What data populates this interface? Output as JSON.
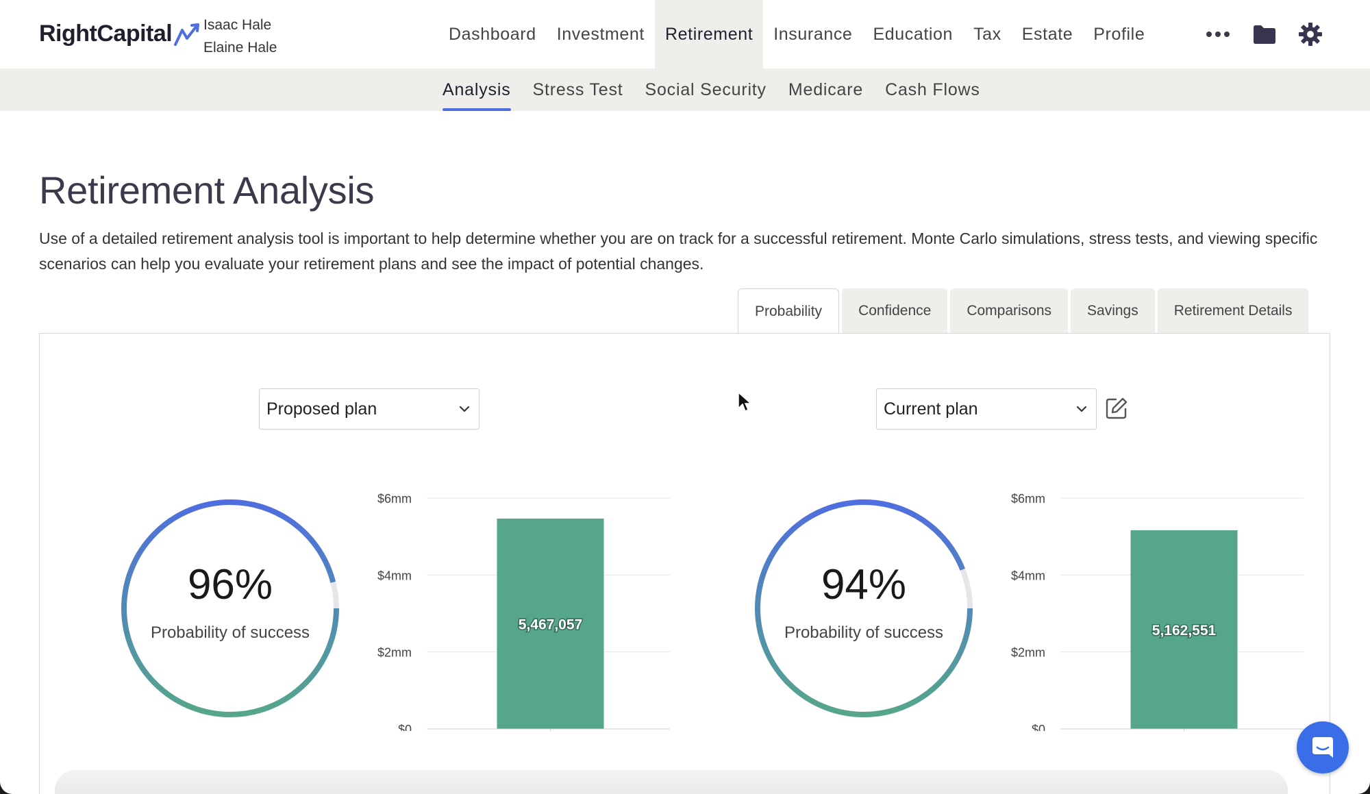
{
  "app": {
    "brand": "RightCapital",
    "clients": [
      "Isaac Hale",
      "Elaine Hale"
    ]
  },
  "main_nav": [
    {
      "label": "Dashboard",
      "active": false
    },
    {
      "label": "Investment",
      "active": false
    },
    {
      "label": "Retirement",
      "active": true
    },
    {
      "label": "Insurance",
      "active": false
    },
    {
      "label": "Education",
      "active": false
    },
    {
      "label": "Tax",
      "active": false
    },
    {
      "label": "Estate",
      "active": false
    },
    {
      "label": "Profile",
      "active": false
    }
  ],
  "nav_icons": [
    "more-icon",
    "folder-icon",
    "gear-icon"
  ],
  "sub_nav": [
    {
      "label": "Analysis",
      "active": true
    },
    {
      "label": "Stress Test",
      "active": false
    },
    {
      "label": "Social Security",
      "active": false
    },
    {
      "label": "Medicare",
      "active": false
    },
    {
      "label": "Cash Flows",
      "active": false
    }
  ],
  "page": {
    "title": "Retirement Analysis",
    "description": "Use of a detailed retirement analysis tool is important to help determine whether you are on track for a successful retirement. Monte Carlo simulations, stress tests, and viewing specific scenarios can help you evaluate your retirement plans and see the impact of potential changes."
  },
  "tabs": [
    {
      "label": "Probability",
      "active": true
    },
    {
      "label": "Confidence",
      "active": false
    },
    {
      "label": "Comparisons",
      "active": false
    },
    {
      "label": "Savings",
      "active": false
    },
    {
      "label": "Retirement Details",
      "active": false
    }
  ],
  "colors": {
    "accent": "#4f6ee0",
    "bar": "#55a68a",
    "gauge_start": "#4f6ee0",
    "gauge_end": "#55a68a",
    "gauge_track": "#e6e6ea"
  },
  "plans": [
    {
      "selected": "Proposed plan",
      "probability_value": 96,
      "probability_text": "96%",
      "probability_label": "Probability of success"
    },
    {
      "selected": "Current plan",
      "probability_value": 94,
      "probability_text": "94%",
      "probability_label": "Probability of success"
    }
  ],
  "chart_data": [
    {
      "type": "bar",
      "categories": [
        ""
      ],
      "values": [
        5467057
      ],
      "data_labels": [
        "5,467,057"
      ],
      "ylim": [
        0,
        6000000
      ],
      "yticks": [
        0,
        2000000,
        4000000,
        6000000
      ],
      "ytick_labels": [
        "$0",
        "$2mm",
        "$4mm",
        "$6mm"
      ],
      "grid": true
    },
    {
      "type": "bar",
      "categories": [
        ""
      ],
      "values": [
        5162551
      ],
      "data_labels": [
        "5,162,551"
      ],
      "ylim": [
        0,
        6000000
      ],
      "yticks": [
        0,
        2000000,
        4000000,
        6000000
      ],
      "ytick_labels": [
        "$0",
        "$2mm",
        "$4mm",
        "$6mm"
      ],
      "grid": true
    }
  ]
}
